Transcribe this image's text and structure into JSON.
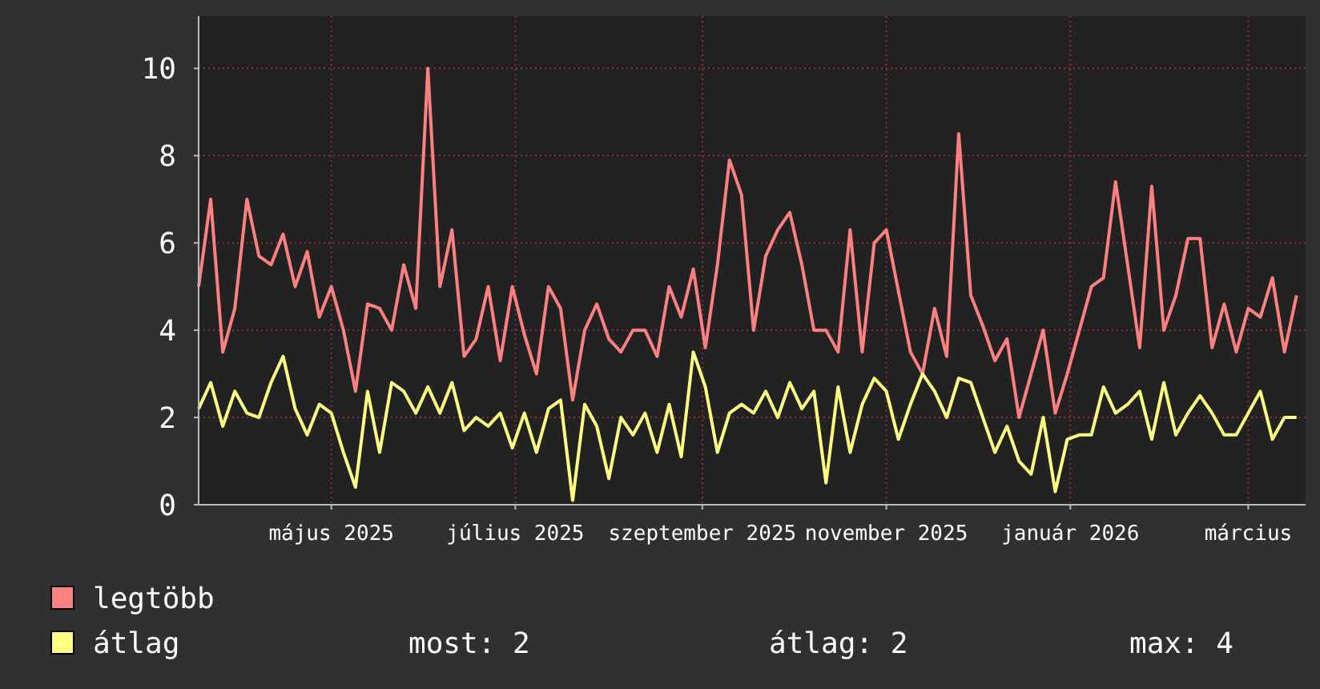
{
  "chart_data": {
    "type": "line",
    "x": [
      "2025-03-18",
      "2025-03-22",
      "2025-03-26",
      "2025-03-30",
      "2025-04-03",
      "2025-04-07",
      "2025-04-11",
      "2025-04-15",
      "2025-04-19",
      "2025-04-23",
      "2025-04-27",
      "2025-05-01",
      "2025-05-05",
      "2025-05-09",
      "2025-05-13",
      "2025-05-17",
      "2025-05-21",
      "2025-05-25",
      "2025-05-29",
      "2025-06-02",
      "2025-06-06",
      "2025-06-10",
      "2025-06-14",
      "2025-06-18",
      "2025-06-22",
      "2025-06-26",
      "2025-06-30",
      "2025-07-04",
      "2025-07-08",
      "2025-07-12",
      "2025-07-16",
      "2025-07-20",
      "2025-07-24",
      "2025-07-28",
      "2025-08-01",
      "2025-08-05",
      "2025-08-09",
      "2025-08-13",
      "2025-08-17",
      "2025-08-21",
      "2025-08-25",
      "2025-08-29",
      "2025-09-02",
      "2025-09-06",
      "2025-09-10",
      "2025-09-14",
      "2025-09-18",
      "2025-09-22",
      "2025-09-26",
      "2025-09-30",
      "2025-10-04",
      "2025-10-08",
      "2025-10-12",
      "2025-10-16",
      "2025-10-20",
      "2025-10-24",
      "2025-10-28",
      "2025-11-01",
      "2025-11-05",
      "2025-11-09",
      "2025-11-13",
      "2025-11-17",
      "2025-11-21",
      "2025-11-25",
      "2025-11-29",
      "2025-12-03",
      "2025-12-07",
      "2025-12-11",
      "2025-12-15",
      "2025-12-19",
      "2025-12-23",
      "2025-12-27",
      "2025-12-31",
      "2026-01-04",
      "2026-01-08",
      "2026-01-12",
      "2026-01-16",
      "2026-01-20",
      "2026-01-24",
      "2026-01-28",
      "2026-02-01",
      "2026-02-05",
      "2026-02-09",
      "2026-02-13",
      "2026-02-17",
      "2026-02-21",
      "2026-02-25",
      "2026-03-01",
      "2026-03-05",
      "2026-03-09",
      "2026-03-13",
      "2026-03-17"
    ],
    "series": [
      {
        "name": "legtöbb",
        "color": "#ff8080",
        "values": [
          5,
          7,
          3.5,
          4.5,
          7,
          5.7,
          5.5,
          6.2,
          5,
          5.8,
          4.3,
          5,
          4,
          2.6,
          4.6,
          4.5,
          4,
          5.5,
          4.5,
          10,
          5,
          6.3,
          3.4,
          3.8,
          5,
          3.3,
          5,
          3.9,
          3,
          5,
          4.5,
          2.4,
          4,
          4.6,
          3.8,
          3.5,
          4,
          4,
          3.4,
          5,
          4.3,
          5.4,
          3.6,
          5.5,
          7.9,
          7.1,
          4,
          5.7,
          6.3,
          6.7,
          5.5,
          4,
          4,
          3.5,
          6.3,
          3.5,
          6,
          6.3,
          4.9,
          3.5,
          3,
          4.5,
          3.4,
          8.5,
          4.8,
          4.1,
          3.3,
          3.8,
          2,
          3,
          4,
          2.1,
          3,
          4,
          5,
          5.2,
          7.4,
          5.5,
          3.6,
          7.3,
          4,
          4.8,
          6.1,
          6.1,
          3.6,
          4.6,
          3.5,
          4.5,
          4.3,
          5.2,
          3.5,
          4.8
        ]
      },
      {
        "name": "átlag",
        "color": "#ffff80",
        "values": [
          2.2,
          2.8,
          1.8,
          2.6,
          2.1,
          2,
          2.8,
          3.4,
          2.2,
          1.6,
          2.3,
          2.1,
          1.2,
          0.4,
          2.6,
          1.2,
          2.8,
          2.6,
          2.1,
          2.7,
          2.1,
          2.8,
          1.7,
          2,
          1.8,
          2.1,
          1.3,
          2.1,
          1.2,
          2.2,
          2.4,
          0.1,
          2.3,
          1.8,
          0.6,
          2,
          1.6,
          2.1,
          1.2,
          2.3,
          1.1,
          3.5,
          2.7,
          1.2,
          2.1,
          2.3,
          2.1,
          2.6,
          2,
          2.8,
          2.2,
          2.6,
          0.5,
          2.7,
          1.2,
          2.3,
          2.9,
          2.6,
          1.5,
          2.3,
          3,
          2.6,
          2,
          2.9,
          2.8,
          2,
          1.2,
          1.8,
          1,
          0.7,
          2,
          0.3,
          1.5,
          1.6,
          1.6,
          2.7,
          2.1,
          2.3,
          2.6,
          1.5,
          2.8,
          1.6,
          2.1,
          2.5,
          2.1,
          1.6,
          1.6,
          2.1,
          2.6,
          1.5,
          2,
          2
        ]
      }
    ],
    "xlim": [
      "2025-03-18",
      "2026-03-20"
    ],
    "xticks": [
      {
        "value": "2025-05-01",
        "label": "május 2025"
      },
      {
        "value": "2025-07-01",
        "label": "július 2025"
      },
      {
        "value": "2025-09-01",
        "label": "szeptember 2025"
      },
      {
        "value": "2025-11-01",
        "label": "november 2025"
      },
      {
        "value": "2026-01-01",
        "label": "január 2026"
      },
      {
        "value": "2026-03-01",
        "label": "március"
      }
    ],
    "ylim": [
      0,
      11.2
    ],
    "yticks": [
      0,
      2,
      4,
      6,
      8,
      10
    ],
    "grid": true,
    "legend": "bottom",
    "line_style": "solid",
    "marker": "none",
    "annotations": [
      "most: 2",
      "átlag: 2",
      "max: 4"
    ]
  }
}
